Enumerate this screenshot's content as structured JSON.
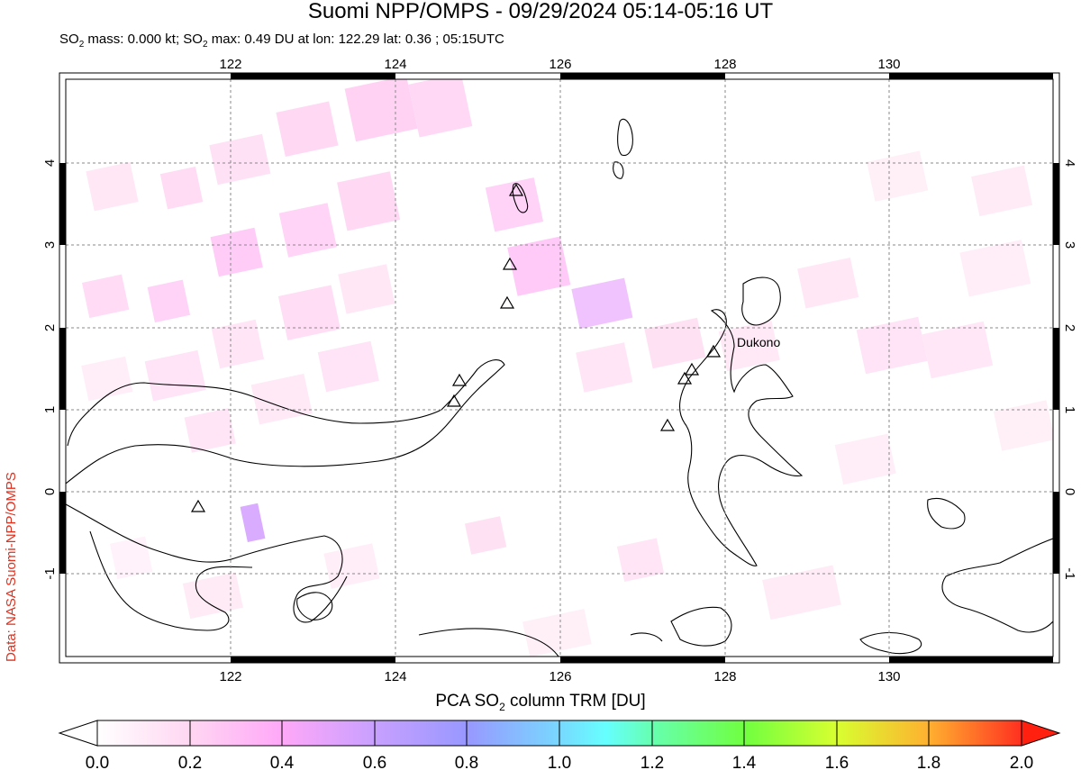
{
  "title": "Suomi NPP/OMPS - 09/29/2024 05:14-05:16 UT",
  "subtitle_parts": {
    "a": "SO",
    "a_sub": "2",
    "b": " mass: 0.000 kt; SO",
    "b_sub": "2",
    "c": " max: 0.49 DU at lon: 122.29 lat: 0.36 ; 05:15UTC"
  },
  "credit": "Data: NASA Suomi-NPP/OMPS",
  "map": {
    "lon_range": [
      120,
      132
    ],
    "lat_range": [
      -2,
      5
    ],
    "lon_ticks": [
      "122",
      "124",
      "126",
      "128",
      "130"
    ],
    "lat_ticks": [
      "4",
      "3",
      "2",
      "1",
      "0",
      "-1"
    ],
    "volcano_label": "Dukono",
    "grid": "dashed"
  },
  "colorbar": {
    "title_a": "PCA SO",
    "title_sub": "2",
    "title_b": " column TRM [DU]",
    "ticks": [
      "0.0",
      "0.2",
      "0.4",
      "0.6",
      "0.8",
      "1.0",
      "1.2",
      "1.4",
      "1.6",
      "1.8",
      "2.0"
    ],
    "colors": [
      "#ffffff",
      "#ffd0f0",
      "#ff9cff",
      "#c896ff",
      "#9696ff",
      "#64c8ff",
      "#64ffff",
      "#64ff96",
      "#96ff32",
      "#ffff32",
      "#ffc832",
      "#ff6432",
      "#ff0000"
    ]
  }
}
